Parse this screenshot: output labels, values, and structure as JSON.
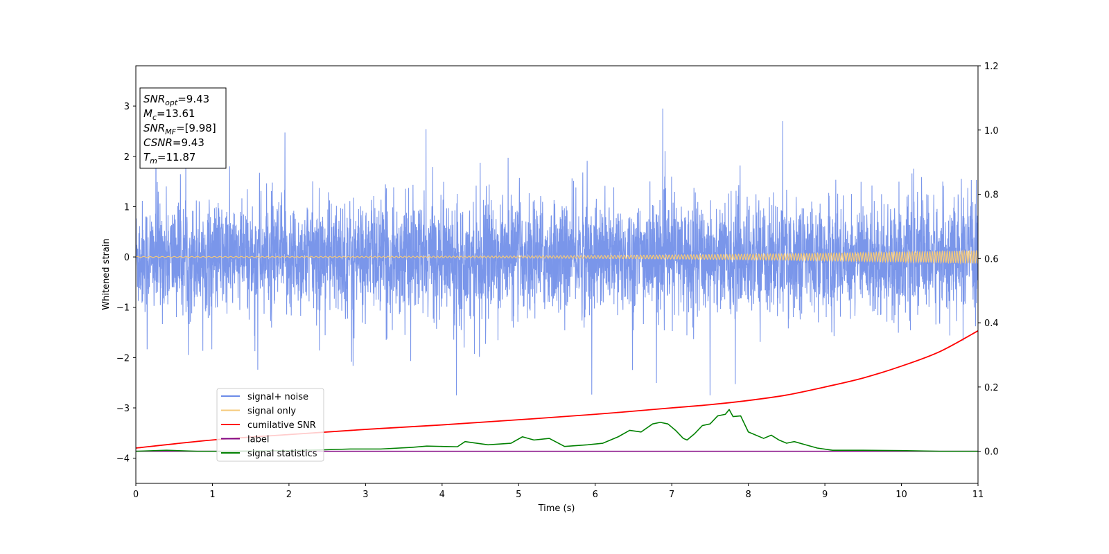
{
  "chart_data": {
    "type": "line",
    "xlabel": "Time (s)",
    "ylabel": "Whitened strain",
    "xlim": [
      0,
      11
    ],
    "ylim_left": [
      -4.5,
      3.8
    ],
    "ylim_right": [
      -0.1,
      1.2
    ],
    "x_ticks": [
      "0",
      "1",
      "2",
      "3",
      "4",
      "5",
      "6",
      "7",
      "8",
      "9",
      "10",
      "11"
    ],
    "y_ticks_left": [
      "3",
      "2",
      "1",
      "0",
      "−1",
      "−2",
      "−3",
      "−4"
    ],
    "y_ticks_right": [
      "1.2",
      "1.0",
      "0.8",
      "0.6",
      "0.4",
      "0.2",
      "0.0"
    ],
    "info_box": {
      "lines": [
        {
          "sym": "SNR",
          "sub": "opt",
          "text": "=9.43"
        },
        {
          "sym": "M",
          "sub": "c",
          "text": "=13.61"
        },
        {
          "sym": "SNR",
          "sub": "MF",
          "text": "=[9.98]"
        },
        {
          "sym": "CSNR",
          "sub": "",
          "text": "=9.43"
        },
        {
          "sym": "T",
          "sub": "m",
          "text": "=11.87"
        }
      ]
    },
    "legend": {
      "placement": "lower-left",
      "entries": [
        {
          "label": "signal+ noise",
          "color": "#6b8be8"
        },
        {
          "label": "signal only",
          "color": "#f5c97a"
        },
        {
          "label": "cumilative SNR",
          "color": "#ff0000"
        },
        {
          "label": "label",
          "color": "#800080"
        },
        {
          "label": "signal statistics",
          "color": "#008000"
        }
      ]
    },
    "series": [
      {
        "name": "signal+ noise",
        "axis": "left",
        "color": "#6b8be8",
        "description_free": true,
        "approx_envelope": [
          -2.4,
          2.6
        ]
      },
      {
        "name": "signal only",
        "axis": "left",
        "color": "#f5c97a",
        "amplitude_start": 0.01,
        "amplitude_end": 0.13
      },
      {
        "name": "cumilative SNR",
        "axis": "right",
        "color": "#ff0000",
        "x": [
          0,
          1,
          2,
          3,
          4,
          5,
          6,
          7,
          7.5,
          8,
          8.5,
          9,
          9.5,
          10,
          10.5,
          11
        ],
        "y": [
          0.01,
          0.035,
          0.052,
          0.068,
          0.082,
          0.098,
          0.115,
          0.135,
          0.145,
          0.158,
          0.175,
          0.2,
          0.228,
          0.265,
          0.31,
          0.375
        ]
      },
      {
        "name": "label",
        "axis": "right",
        "color": "#800080",
        "x": [
          0,
          11
        ],
        "y": [
          0,
          0
        ]
      },
      {
        "name": "signal statistics",
        "axis": "right",
        "color": "#008000",
        "x": [
          0,
          0.4,
          0.8,
          1.2,
          1.6,
          2.0,
          2.4,
          2.8,
          3.2,
          3.6,
          3.8,
          4.0,
          4.2,
          4.3,
          4.6,
          4.9,
          5.05,
          5.2,
          5.4,
          5.6,
          5.9,
          6.1,
          6.3,
          6.45,
          6.6,
          6.75,
          6.85,
          6.95,
          7.05,
          7.15,
          7.2,
          7.3,
          7.4,
          7.5,
          7.6,
          7.7,
          7.75,
          7.8,
          7.9,
          8.0,
          8.2,
          8.3,
          8.4,
          8.5,
          8.6,
          8.75,
          8.9,
          9.1,
          9.5,
          10.0,
          10.5,
          11.0
        ],
        "y": [
          0.0,
          0.003,
          0.0,
          0.0,
          0.001,
          0.002,
          0.004,
          0.007,
          0.007,
          0.012,
          0.016,
          0.015,
          0.014,
          0.03,
          0.02,
          0.025,
          0.045,
          0.035,
          0.04,
          0.015,
          0.02,
          0.025,
          0.045,
          0.065,
          0.06,
          0.085,
          0.09,
          0.085,
          0.065,
          0.04,
          0.035,
          0.055,
          0.08,
          0.085,
          0.11,
          0.115,
          0.13,
          0.108,
          0.11,
          0.06,
          0.04,
          0.05,
          0.035,
          0.025,
          0.03,
          0.02,
          0.01,
          0.003,
          0.003,
          0.002,
          0.0,
          0.0
        ]
      }
    ]
  }
}
